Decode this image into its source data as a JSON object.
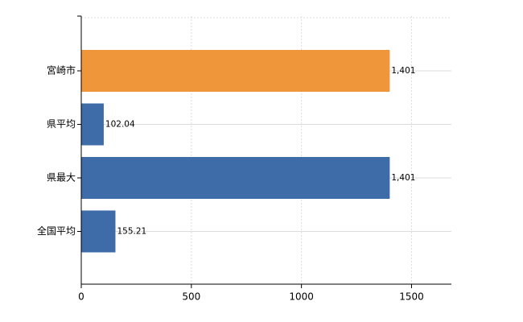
{
  "chart_data": {
    "type": "bar",
    "orientation": "horizontal",
    "categories": [
      "宮崎市",
      "県平均",
      "県最大",
      "全国平均"
    ],
    "values": [
      1401,
      102.04,
      1401,
      155.21
    ],
    "value_labels": [
      "1,401",
      "102.04",
      "1,401",
      "155.21"
    ],
    "colors": [
      "#f0963a",
      "#3d6ca8",
      "#3d6ca8",
      "#3d6ca8"
    ],
    "xlim": [
      0,
      1681
    ],
    "xticks": [
      0,
      500,
      1000,
      1500
    ],
    "grid": true
  }
}
